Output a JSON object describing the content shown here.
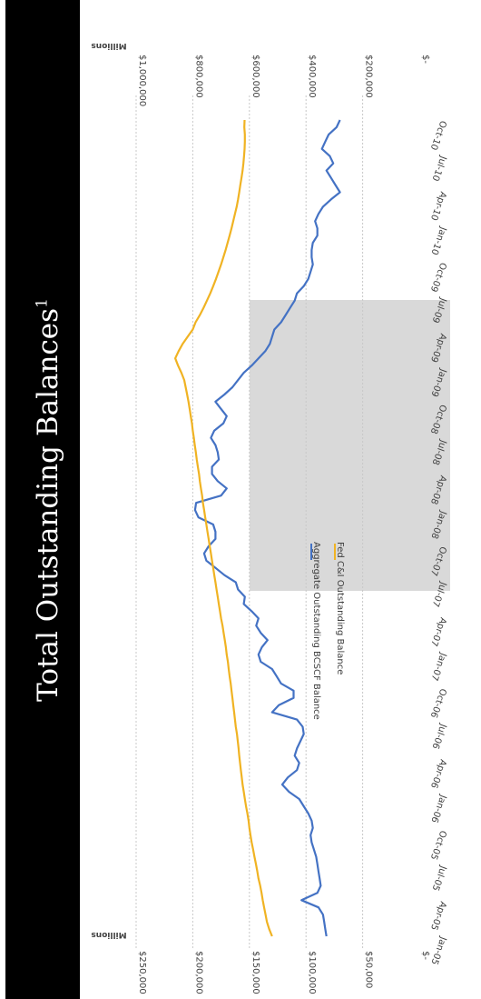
{
  "title": {
    "text": "Total Outstanding Balances",
    "superscript": "1"
  },
  "chart_data": {
    "type": "line",
    "x_ticks": [
      "Jan-05",
      "Apr-05",
      "Jul-05",
      "Oct-05",
      "Jan-06",
      "Apr-06",
      "Jul-06",
      "Oct-06",
      "Jan-07",
      "Apr-07",
      "Jul-07",
      "Oct-07",
      "Jan-08",
      "Apr-08",
      "Jul-08",
      "Oct-08",
      "Jan-09",
      "Apr-09",
      "Jul-09",
      "Oct-09",
      "Jan-10",
      "Apr-10",
      "Jul-10",
      "Oct-10"
    ],
    "left_axis": {
      "unit_label": "Millions",
      "ticks": [
        "$-",
        "$50,000",
        "$100,000",
        "$150,000",
        "$200,000",
        "$250,000"
      ],
      "range": [
        0,
        250000
      ]
    },
    "right_axis": {
      "unit_label": "Millions",
      "ticks": [
        "$-",
        "$200,000",
        "$400,000",
        "$600,000",
        "$800,000",
        "$1,000,000"
      ],
      "range": [
        0,
        1000000
      ]
    },
    "shaded_region": {
      "from": "Dec-07",
      "to": "Jun-09"
    },
    "series": [
      {
        "name": "Aggregate Outstanding BCSCF Balance",
        "axis": "left",
        "color": "#4472c4",
        "values": [
          82000,
          83000,
          84000,
          85000,
          89000,
          104000,
          90000,
          87000,
          88000,
          89000,
          90000,
          91000,
          93000,
          95000,
          96000,
          94000,
          95000,
          98000,
          102000,
          106000,
          115000,
          121000,
          116000,
          108000,
          106000,
          110000,
          108000,
          105000,
          102000,
          103000,
          108000,
          130000,
          124000,
          111000,
          111000,
          122000,
          126000,
          130000,
          140000,
          142000,
          139000,
          134000,
          140000,
          144000,
          142000,
          148000,
          155000,
          154000,
          160000,
          162000,
          172000,
          180000,
          188000,
          190000,
          186000,
          180000,
          180000,
          182000,
          195000,
          198000,
          197000,
          175000,
          170000,
          178000,
          183000,
          183000,
          177000,
          178000,
          180000,
          184000,
          181000,
          173000,
          170000,
          175000,
          180000,
          172000,
          165000,
          160000,
          155000,
          148000,
          142000,
          136000,
          132000,
          130000,
          128000,
          122000,
          118000,
          114000,
          110000,
          108000,
          102000,
          98000,
          96000,
          94000,
          95000,
          95000,
          94000,
          90000,
          90000,
          92000,
          89000,
          85000,
          78000,
          70000,
          74000,
          78000,
          82000,
          76000,
          79000,
          86000,
          83000,
          80000,
          73000,
          70000
        ]
      },
      {
        "name": "Fed C&I Outstanding Balance",
        "axis": "right",
        "color": "#f0b323",
        "values": [
          520000,
          530000,
          538000,
          543000,
          548000,
          553000,
          557000,
          562000,
          568000,
          572000,
          577000,
          582000,
          587000,
          592000,
          596000,
          600000,
          603000,
          607000,
          612000,
          616000,
          620000,
          624000,
          627000,
          630000,
          633000,
          636000,
          638000,
          641000,
          644000,
          648000,
          651000,
          654000,
          657000,
          660000,
          663000,
          666000,
          670000,
          673000,
          676000,
          680000,
          683000,
          687000,
          691000,
          695000,
          700000,
          704000,
          708000,
          712000,
          716000,
          720000,
          724000,
          728000,
          732000,
          736000,
          740000,
          744000,
          748000,
          752000,
          756000,
          760000,
          764000,
          767000,
          771000,
          775000,
          778000,
          782000,
          786000,
          789000,
          793000,
          796000,
          800000,
          803000,
          807000,
          811000,
          815000,
          820000,
          825000,
          830000,
          840000,
          852000,
          862000,
          850000,
          836000,
          818000,
          800000,
          790000,
          775000,
          762000,
          750000,
          738000,
          728000,
          718000,
          709000,
          700000,
          692000,
          684000,
          677000,
          670000,
          663000,
          657000,
          651000,
          645000,
          640000,
          636000,
          632000,
          628000,
          624000,
          621000,
          619000,
          617000,
          616000,
          616000,
          618000,
          617000
        ]
      }
    ]
  }
}
